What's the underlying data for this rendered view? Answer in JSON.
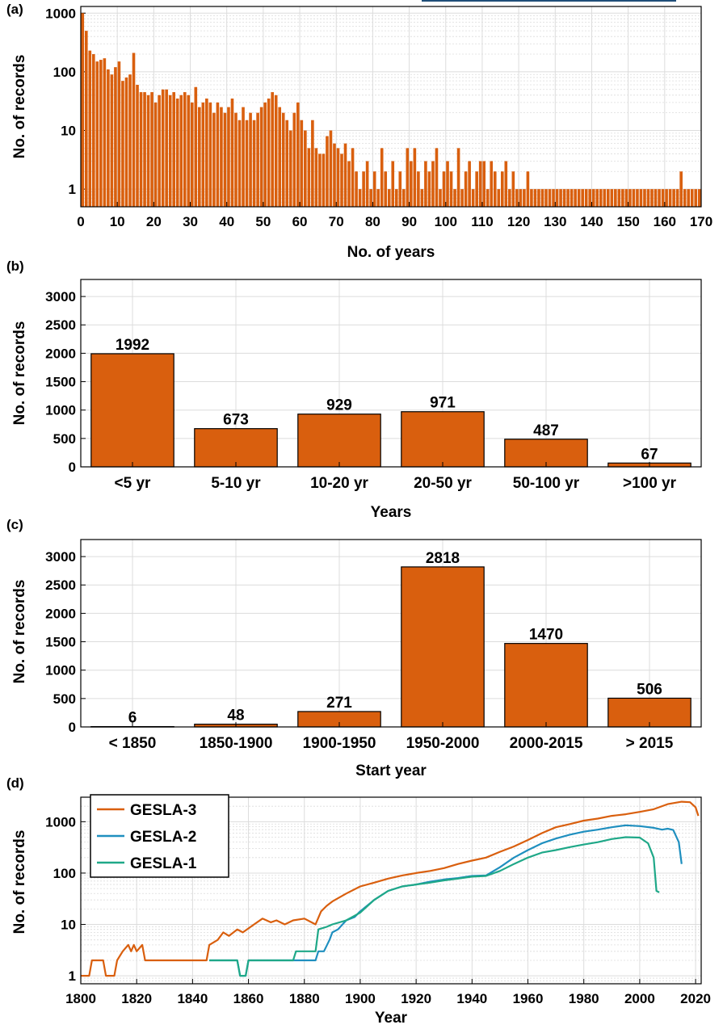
{
  "colors": {
    "bar": "#D95F0E",
    "gesla3": "#D95F0E",
    "gesla2": "#1F8FBF",
    "gesla1": "#1FA888",
    "grid": "#dcdcdc",
    "link_underline": "#1f4e79"
  },
  "chart_data": [
    {
      "panel": "(a)",
      "type": "bar",
      "xlabel": "No. of years",
      "ylabel": "No. of  records",
      "yscale": "log",
      "xlim": [
        0,
        170
      ],
      "ylim": [
        0.5,
        1300
      ],
      "xticks": [
        0,
        10,
        20,
        30,
        40,
        50,
        60,
        70,
        80,
        90,
        100,
        110,
        120,
        130,
        140,
        150,
        160,
        170
      ],
      "yticks": [
        1,
        10,
        100,
        1000
      ],
      "ytick_labels": [
        "1",
        "10",
        "100",
        "1000"
      ],
      "grid": true,
      "x": [
        1,
        2,
        3,
        4,
        5,
        6,
        7,
        8,
        9,
        10,
        11,
        12,
        13,
        14,
        15,
        16,
        17,
        18,
        19,
        20,
        21,
        22,
        23,
        24,
        25,
        26,
        27,
        28,
        29,
        30,
        31,
        32,
        33,
        34,
        35,
        36,
        37,
        38,
        39,
        40,
        41,
        42,
        43,
        44,
        45,
        46,
        47,
        48,
        49,
        50,
        51,
        52,
        53,
        54,
        55,
        56,
        57,
        58,
        59,
        60,
        61,
        62,
        63,
        64,
        65,
        66,
        67,
        68,
        69,
        70,
        71,
        72,
        73,
        74,
        75,
        76,
        77,
        78,
        79,
        80,
        81,
        82,
        83,
        84,
        85,
        86,
        87,
        88,
        89,
        90,
        91,
        92,
        93,
        94,
        95,
        96,
        97,
        98,
        99,
        100,
        101,
        102,
        103,
        104,
        105,
        106,
        107,
        108,
        109,
        110,
        111,
        112,
        113,
        114,
        115,
        116,
        117,
        118,
        119,
        120,
        121,
        122,
        123,
        124,
        125,
        126,
        127,
        128,
        129,
        130,
        131,
        132,
        133,
        134,
        135,
        136,
        137,
        138,
        139,
        140,
        141,
        142,
        143,
        144,
        145,
        146,
        147,
        148,
        149,
        150,
        151,
        152,
        153,
        154,
        155,
        156,
        157,
        158,
        159,
        160,
        161,
        162,
        163,
        164,
        165,
        166,
        167,
        168,
        169,
        170
      ],
      "values": [
        1000,
        500,
        230,
        200,
        150,
        160,
        170,
        110,
        90,
        120,
        150,
        70,
        80,
        90,
        210,
        60,
        45,
        45,
        40,
        45,
        30,
        40,
        50,
        50,
        40,
        45,
        35,
        40,
        45,
        40,
        30,
        55,
        25,
        30,
        35,
        30,
        20,
        30,
        25,
        20,
        25,
        35,
        20,
        15,
        25,
        15,
        20,
        15,
        20,
        25,
        30,
        35,
        45,
        40,
        25,
        20,
        15,
        10,
        20,
        30,
        15,
        10,
        5,
        15,
        5,
        4,
        4,
        8,
        10,
        6,
        5,
        4,
        6,
        3,
        5,
        2,
        1,
        2,
        3,
        1,
        2,
        1,
        5,
        2,
        1,
        3,
        1,
        2,
        1,
        5,
        3,
        5,
        2,
        1,
        3,
        2,
        3,
        5,
        1,
        2,
        3,
        2,
        1,
        5,
        1,
        2,
        3,
        1,
        2,
        3,
        3,
        1,
        3,
        2,
        1,
        2,
        3,
        1,
        2,
        1,
        1,
        1,
        2,
        1,
        1,
        1,
        1,
        1,
        1,
        1,
        1,
        1,
        1,
        1,
        1,
        1,
        1,
        1,
        1,
        1,
        1,
        1,
        1,
        1,
        1,
        1,
        1,
        1,
        1,
        1,
        1,
        1,
        1,
        1,
        1,
        1,
        1,
        1,
        1,
        1,
        1,
        1,
        1,
        1,
        2,
        1,
        1,
        1,
        1,
        1
      ]
    },
    {
      "panel": "(b)",
      "type": "bar",
      "xlabel": "Years",
      "ylabel": "No. of  records",
      "categories": [
        "<5 yr",
        "5-10 yr",
        "10-20 yr",
        "20-50 yr",
        "50-100 yr",
        ">100 yr"
      ],
      "values": [
        1992,
        673,
        929,
        971,
        487,
        67
      ],
      "ylim": [
        0,
        3300
      ],
      "yticks": [
        0,
        500,
        1000,
        1500,
        2000,
        2500,
        3000
      ],
      "ytick_labels": [
        "0",
        "500",
        "1000",
        "1500",
        "2000",
        "2500",
        "3000"
      ],
      "value_labels": [
        "1992",
        "673",
        "929",
        "971",
        "487",
        "67"
      ],
      "grid": true
    },
    {
      "panel": "(c)",
      "type": "bar",
      "xlabel": "Start year",
      "ylabel": "No. of  records",
      "categories": [
        "< 1850",
        "1850-1900",
        "1900-1950",
        "1950-2000",
        "2000-2015",
        "> 2015"
      ],
      "values": [
        6,
        48,
        271,
        2818,
        1470,
        506
      ],
      "ylim": [
        0,
        3300
      ],
      "yticks": [
        0,
        500,
        1000,
        1500,
        2000,
        2500,
        3000
      ],
      "ytick_labels": [
        "0",
        "500",
        "1000",
        "1500",
        "2000",
        "2500",
        "3000"
      ],
      "value_labels": [
        "6",
        "48",
        "271",
        "2818",
        "1470",
        "506"
      ],
      "grid": true
    },
    {
      "panel": "(d)",
      "type": "line",
      "xlabel": "Year",
      "ylabel": "No. of  records",
      "yscale": "log",
      "xlim": [
        1800,
        2022
      ],
      "ylim": [
        0.7,
        3000
      ],
      "xticks": [
        1800,
        1820,
        1840,
        1860,
        1880,
        1900,
        1920,
        1940,
        1960,
        1980,
        2000,
        2020
      ],
      "yticks": [
        1,
        10,
        100,
        1000
      ],
      "ytick_labels": [
        "1",
        "10",
        "100",
        "1000"
      ],
      "legend": "top-left",
      "grid": true,
      "series": [
        {
          "name": "GESLA-3",
          "color_key": "gesla3",
          "points": [
            [
              1800,
              1
            ],
            [
              1803,
              1
            ],
            [
              1804,
              2
            ],
            [
              1808,
              2
            ],
            [
              1809,
              1
            ],
            [
              1812,
              1
            ],
            [
              1813,
              2
            ],
            [
              1815,
              3
            ],
            [
              1817,
              4
            ],
            [
              1818,
              3
            ],
            [
              1819,
              4
            ],
            [
              1820,
              3
            ],
            [
              1822,
              4
            ],
            [
              1823,
              2
            ],
            [
              1845,
              2
            ],
            [
              1846,
              4
            ],
            [
              1849,
              5
            ],
            [
              1851,
              7
            ],
            [
              1853,
              6
            ],
            [
              1856,
              8
            ],
            [
              1858,
              7
            ],
            [
              1862,
              10
            ],
            [
              1865,
              13
            ],
            [
              1868,
              11
            ],
            [
              1870,
              12
            ],
            [
              1873,
              10
            ],
            [
              1876,
              12
            ],
            [
              1880,
              13
            ],
            [
              1884,
              10
            ],
            [
              1886,
              18
            ],
            [
              1888,
              23
            ],
            [
              1890,
              28
            ],
            [
              1895,
              40
            ],
            [
              1900,
              55
            ],
            [
              1905,
              65
            ],
            [
              1910,
              78
            ],
            [
              1915,
              90
            ],
            [
              1920,
              100
            ],
            [
              1925,
              110
            ],
            [
              1930,
              125
            ],
            [
              1935,
              150
            ],
            [
              1940,
              175
            ],
            [
              1945,
              200
            ],
            [
              1950,
              260
            ],
            [
              1955,
              330
            ],
            [
              1960,
              440
            ],
            [
              1965,
              600
            ],
            [
              1970,
              780
            ],
            [
              1975,
              900
            ],
            [
              1980,
              1050
            ],
            [
              1985,
              1150
            ],
            [
              1990,
              1300
            ],
            [
              1995,
              1400
            ],
            [
              2000,
              1550
            ],
            [
              2005,
              1750
            ],
            [
              2010,
              2200
            ],
            [
              2015,
              2450
            ],
            [
              2018,
              2400
            ],
            [
              2020,
              1900
            ],
            [
              2021,
              1300
            ]
          ]
        },
        {
          "name": "GESLA-2",
          "color_key": "gesla2",
          "points": [
            [
              1846,
              2
            ],
            [
              1856,
              2
            ],
            [
              1857,
              1
            ],
            [
              1859,
              1
            ],
            [
              1860,
              2
            ],
            [
              1884,
              2
            ],
            [
              1885,
              3
            ],
            [
              1887,
              3
            ],
            [
              1889,
              5
            ],
            [
              1890,
              7
            ],
            [
              1892,
              8
            ],
            [
              1895,
              12
            ],
            [
              1898,
              14
            ],
            [
              1900,
              18
            ],
            [
              1905,
              30
            ],
            [
              1910,
              45
            ],
            [
              1915,
              55
            ],
            [
              1920,
              60
            ],
            [
              1925,
              68
            ],
            [
              1930,
              75
            ],
            [
              1935,
              80
            ],
            [
              1940,
              88
            ],
            [
              1945,
              90
            ],
            [
              1950,
              130
            ],
            [
              1955,
              200
            ],
            [
              1960,
              280
            ],
            [
              1965,
              380
            ],
            [
              1970,
              470
            ],
            [
              1975,
              560
            ],
            [
              1980,
              640
            ],
            [
              1985,
              700
            ],
            [
              1990,
              780
            ],
            [
              1995,
              850
            ],
            [
              2000,
              820
            ],
            [
              2005,
              760
            ],
            [
              2008,
              700
            ],
            [
              2010,
              730
            ],
            [
              2012,
              690
            ],
            [
              2014,
              400
            ],
            [
              2015,
              150
            ]
          ]
        },
        {
          "name": "GESLA-1",
          "color_key": "gesla1",
          "points": [
            [
              1846,
              2
            ],
            [
              1856,
              2
            ],
            [
              1857,
              1
            ],
            [
              1859,
              1
            ],
            [
              1860,
              2
            ],
            [
              1876,
              2
            ],
            [
              1877,
              3
            ],
            [
              1884,
              3
            ],
            [
              1885,
              8
            ],
            [
              1888,
              9
            ],
            [
              1890,
              10
            ],
            [
              1895,
              12
            ],
            [
              1900,
              17
            ],
            [
              1905,
              30
            ],
            [
              1910,
              45
            ],
            [
              1915,
              55
            ],
            [
              1920,
              60
            ],
            [
              1925,
              65
            ],
            [
              1930,
              72
            ],
            [
              1935,
              78
            ],
            [
              1940,
              85
            ],
            [
              1945,
              88
            ],
            [
              1950,
              110
            ],
            [
              1955,
              150
            ],
            [
              1960,
              200
            ],
            [
              1965,
              250
            ],
            [
              1970,
              280
            ],
            [
              1975,
              320
            ],
            [
              1980,
              360
            ],
            [
              1985,
              400
            ],
            [
              1990,
              460
            ],
            [
              1995,
              500
            ],
            [
              2000,
              490
            ],
            [
              2003,
              380
            ],
            [
              2005,
              200
            ],
            [
              2006,
              45
            ],
            [
              2007,
              42
            ]
          ]
        }
      ]
    }
  ]
}
